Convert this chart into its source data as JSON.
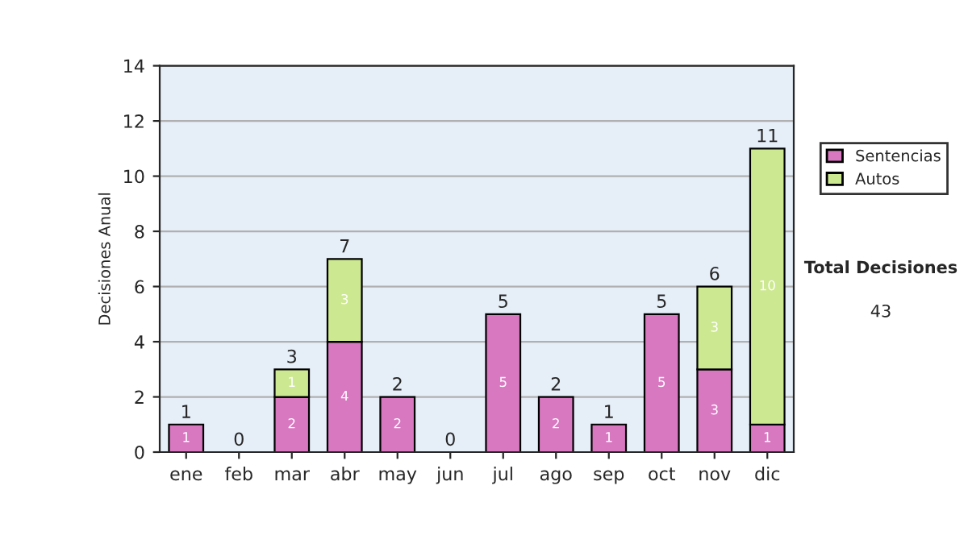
{
  "chart_data": {
    "type": "bar",
    "stacked": true,
    "ylabel": "Decisiones Anual",
    "categories": [
      "ene",
      "feb",
      "mar",
      "abr",
      "may",
      "jun",
      "jul",
      "ago",
      "sep",
      "oct",
      "nov",
      "dic"
    ],
    "series": [
      {
        "name": "Sentencias",
        "color": "#d878c0",
        "values": [
          1,
          0,
          2,
          4,
          2,
          0,
          5,
          2,
          1,
          5,
          3,
          1
        ],
        "value_labels": [
          "1",
          null,
          "2",
          "4",
          "2",
          null,
          "5",
          "2",
          "1",
          "5",
          "3",
          "1"
        ]
      },
      {
        "name": "Autos",
        "color": "#cce890",
        "values": [
          0,
          0,
          1,
          3,
          0,
          0,
          0,
          0,
          0,
          0,
          3,
          10
        ],
        "value_labels": [
          null,
          null,
          "1",
          "3",
          null,
          null,
          null,
          null,
          null,
          null,
          "3",
          "10"
        ]
      }
    ],
    "totals": [
      "1",
      "0",
      "3",
      "7",
      "2",
      "0",
      "5",
      "2",
      "1",
      "5",
      "6",
      "11"
    ],
    "ylim": [
      0,
      14
    ],
    "yticks": [
      0,
      2,
      4,
      6,
      8,
      10,
      12,
      14
    ],
    "grid": "y",
    "legend": "right",
    "annotations": [
      "Total Decisiones",
      "43"
    ]
  }
}
